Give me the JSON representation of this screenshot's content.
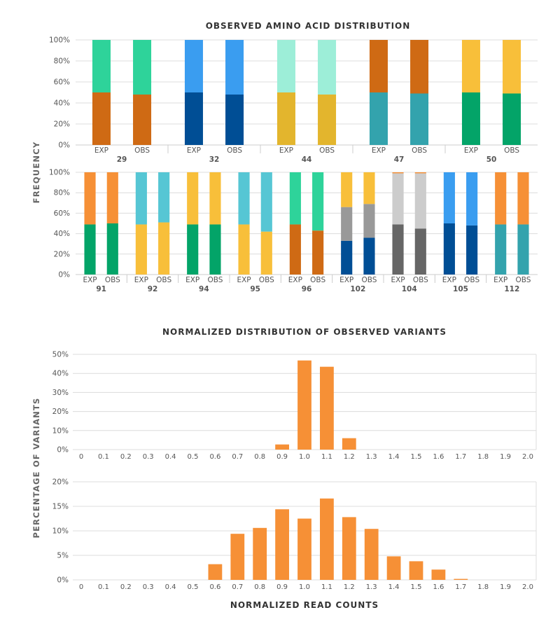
{
  "top_title": "OBSERVED AMINO ACID DISTRIBUTION",
  "top_ylabel": "FREQUENCY",
  "bottom_title": "NORMALIZED DISTRIBUTION OF OBSERVED VARIANTS",
  "bottom_ylabel": "PERCENTAGE OF VARIANTS",
  "bottom_xlabel": "NORMALIZED READ COUNTS",
  "chart_data": [
    {
      "type": "bar",
      "stacked": true,
      "panel": "amino-row-1",
      "ylim": [
        0,
        100
      ],
      "y_ticks": [
        "0%",
        "20%",
        "40%",
        "60%",
        "80%",
        "100%"
      ],
      "grid": true,
      "sub_labels": [
        "EXP",
        "OBS"
      ],
      "groups": [
        {
          "name": "29",
          "bars": [
            {
              "label": "EXP",
              "segments": [
                {
                  "value": 50,
                  "color": "#cf6a14"
                },
                {
                  "value": 50,
                  "color": "#2ed39a"
                }
              ]
            },
            {
              "label": "OBS",
              "segments": [
                {
                  "value": 48,
                  "color": "#cf6a14"
                },
                {
                  "value": 52,
                  "color": "#2ed39a"
                }
              ]
            }
          ]
        },
        {
          "name": "32",
          "bars": [
            {
              "label": "EXP",
              "segments": [
                {
                  "value": 50,
                  "color": "#004e95"
                },
                {
                  "value": 50,
                  "color": "#3a9df0"
                }
              ]
            },
            {
              "label": "OBS",
              "segments": [
                {
                  "value": 48,
                  "color": "#004e95"
                },
                {
                  "value": 52,
                  "color": "#3a9df0"
                }
              ]
            }
          ]
        },
        {
          "name": "44",
          "bars": [
            {
              "label": "EXP",
              "segments": [
                {
                  "value": 50,
                  "color": "#e3b52d"
                },
                {
                  "value": 50,
                  "color": "#9deed8"
                }
              ]
            },
            {
              "label": "OBS",
              "segments": [
                {
                  "value": 48,
                  "color": "#e3b52d"
                },
                {
                  "value": 52,
                  "color": "#9deed8"
                }
              ]
            }
          ]
        },
        {
          "name": "47",
          "bars": [
            {
              "label": "EXP",
              "segments": [
                {
                  "value": 50,
                  "color": "#33a3ad"
                },
                {
                  "value": 50,
                  "color": "#cf6a14"
                }
              ]
            },
            {
              "label": "OBS",
              "segments": [
                {
                  "value": 49,
                  "color": "#33a3ad"
                },
                {
                  "value": 51,
                  "color": "#cf6a14"
                }
              ]
            }
          ]
        },
        {
          "name": "50",
          "bars": [
            {
              "label": "EXP",
              "segments": [
                {
                  "value": 50,
                  "color": "#03a468"
                },
                {
                  "value": 50,
                  "color": "#f8bf3a"
                }
              ]
            },
            {
              "label": "OBS",
              "segments": [
                {
                  "value": 49,
                  "color": "#03a468"
                },
                {
                  "value": 51,
                  "color": "#f8bf3a"
                }
              ]
            }
          ]
        }
      ]
    },
    {
      "type": "bar",
      "stacked": true,
      "panel": "amino-row-2",
      "ylim": [
        0,
        100
      ],
      "y_ticks": [
        "0%",
        "20%",
        "40%",
        "60%",
        "80%",
        "100%"
      ],
      "grid": true,
      "sub_labels": [
        "EXP",
        "OBS"
      ],
      "groups": [
        {
          "name": "91",
          "bars": [
            {
              "label": "EXP",
              "segments": [
                {
                  "value": 49,
                  "color": "#03a468"
                },
                {
                  "value": 51,
                  "color": "#f69036"
                }
              ]
            },
            {
              "label": "OBS",
              "segments": [
                {
                  "value": 50,
                  "color": "#03a468"
                },
                {
                  "value": 50,
                  "color": "#f69036"
                }
              ]
            }
          ]
        },
        {
          "name": "92",
          "bars": [
            {
              "label": "EXP",
              "segments": [
                {
                  "value": 49,
                  "color": "#f8bf3a"
                },
                {
                  "value": 51,
                  "color": "#56c6d4"
                }
              ]
            },
            {
              "label": "OBS",
              "segments": [
                {
                  "value": 51,
                  "color": "#f8bf3a"
                },
                {
                  "value": 49,
                  "color": "#56c6d4"
                }
              ]
            }
          ]
        },
        {
          "name": "94",
          "bars": [
            {
              "label": "EXP",
              "segments": [
                {
                  "value": 49,
                  "color": "#03a468"
                },
                {
                  "value": 51,
                  "color": "#f8bf3a"
                }
              ]
            },
            {
              "label": "OBS",
              "segments": [
                {
                  "value": 49,
                  "color": "#03a468"
                },
                {
                  "value": 51,
                  "color": "#f8bf3a"
                }
              ]
            }
          ]
        },
        {
          "name": "95",
          "bars": [
            {
              "label": "EXP",
              "segments": [
                {
                  "value": 49,
                  "color": "#f8bf3a"
                },
                {
                  "value": 51,
                  "color": "#56c6d4"
                }
              ]
            },
            {
              "label": "OBS",
              "segments": [
                {
                  "value": 42,
                  "color": "#f8bf3a"
                },
                {
                  "value": 58,
                  "color": "#56c6d4"
                }
              ]
            }
          ]
        },
        {
          "name": "96",
          "bars": [
            {
              "label": "EXP",
              "segments": [
                {
                  "value": 49,
                  "color": "#cf6a14"
                },
                {
                  "value": 51,
                  "color": "#2ed39a"
                }
              ]
            },
            {
              "label": "OBS",
              "segments": [
                {
                  "value": 43,
                  "color": "#cf6a14"
                },
                {
                  "value": 57,
                  "color": "#2ed39a"
                }
              ]
            }
          ]
        },
        {
          "name": "102",
          "bars": [
            {
              "label": "EXP",
              "segments": [
                {
                  "value": 33,
                  "color": "#004e95"
                },
                {
                  "value": 33,
                  "color": "#999999"
                },
                {
                  "value": 34,
                  "color": "#f8bf3a"
                }
              ]
            },
            {
              "label": "OBS",
              "segments": [
                {
                  "value": 36,
                  "color": "#004e95"
                },
                {
                  "value": 33,
                  "color": "#999999"
                },
                {
                  "value": 31,
                  "color": "#f8bf3a"
                }
              ]
            }
          ]
        },
        {
          "name": "104",
          "bars": [
            {
              "label": "EXP",
              "segments": [
                {
                  "value": 49,
                  "color": "#666666"
                },
                {
                  "value": 50,
                  "color": "#cccccc"
                },
                {
                  "value": 1,
                  "color": "#f69036"
                }
              ]
            },
            {
              "label": "OBS",
              "segments": [
                {
                  "value": 45,
                  "color": "#666666"
                },
                {
                  "value": 54,
                  "color": "#cccccc"
                },
                {
                  "value": 1,
                  "color": "#f69036"
                }
              ]
            }
          ]
        },
        {
          "name": "105",
          "bars": [
            {
              "label": "EXP",
              "segments": [
                {
                  "value": 50,
                  "color": "#004e95"
                },
                {
                  "value": 50,
                  "color": "#3a9df0"
                }
              ]
            },
            {
              "label": "OBS",
              "segments": [
                {
                  "value": 48,
                  "color": "#004e95"
                },
                {
                  "value": 52,
                  "color": "#3a9df0"
                }
              ]
            }
          ]
        },
        {
          "name": "112",
          "bars": [
            {
              "label": "EXP",
              "segments": [
                {
                  "value": 49,
                  "color": "#33a3ad"
                },
                {
                  "value": 51,
                  "color": "#f69036"
                }
              ]
            },
            {
              "label": "OBS",
              "segments": [
                {
                  "value": 49,
                  "color": "#33a3ad"
                },
                {
                  "value": 51,
                  "color": "#f69036"
                }
              ]
            }
          ]
        }
      ]
    },
    {
      "type": "bar",
      "panel": "variants-1",
      "color": "#f69036",
      "x": [
        "0",
        "0.1",
        "0.2",
        "0.3",
        "0.4",
        "0.5",
        "0.6",
        "0.7",
        "0.8",
        "0.9",
        "1.0",
        "1.1",
        "1.2",
        "1.3",
        "1.4",
        "1.5",
        "1.6",
        "1.7",
        "1.8",
        "1.9",
        "2.0"
      ],
      "values": [
        0,
        0,
        0,
        0,
        0,
        0,
        0,
        0,
        0,
        2.7,
        46.8,
        43.5,
        6.0,
        0,
        0,
        0,
        0,
        0,
        0,
        0,
        0
      ],
      "ylim": [
        0,
        50
      ],
      "y_ticks": [
        "0%",
        "10%",
        "20%",
        "30%",
        "40%",
        "50%"
      ],
      "grid": true
    },
    {
      "type": "bar",
      "panel": "variants-2",
      "color": "#f69036",
      "x": [
        "0",
        "0.1",
        "0.2",
        "0.3",
        "0.4",
        "0.5",
        "0.6",
        "0.7",
        "0.8",
        "0.9",
        "1.0",
        "1.1",
        "1.2",
        "1.3",
        "1.4",
        "1.5",
        "1.6",
        "1.7",
        "1.8",
        "1.9",
        "2.0"
      ],
      "values": [
        0,
        0,
        0,
        0,
        0,
        0,
        3.2,
        9.4,
        10.6,
        14.4,
        12.5,
        16.6,
        12.8,
        10.4,
        4.8,
        3.8,
        2.1,
        0.2,
        0,
        0,
        0
      ],
      "ylim": [
        0,
        20
      ],
      "y_ticks": [
        "0%",
        "5%",
        "10%",
        "15%",
        "20%"
      ],
      "grid": true
    }
  ]
}
